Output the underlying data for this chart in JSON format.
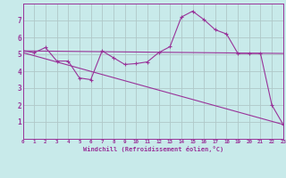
{
  "background_color": "#c8eaea",
  "grid_color": "#b0c8c8",
  "line_color": "#993399",
  "xlim": [
    0,
    23
  ],
  "ylim": [
    0,
    8
  ],
  "xticks": [
    0,
    1,
    2,
    3,
    4,
    5,
    6,
    7,
    8,
    9,
    10,
    11,
    12,
    13,
    14,
    15,
    16,
    17,
    18,
    19,
    20,
    21,
    22,
    23
  ],
  "yticks": [
    1,
    2,
    3,
    4,
    5,
    6,
    7
  ],
  "xlabel": "Windchill (Refroidissement éolien,°C)",
  "series1_x": [
    0,
    1,
    2,
    3,
    4,
    5,
    6,
    7,
    8,
    9,
    10,
    11,
    12,
    13,
    14,
    15,
    16,
    17,
    18,
    19,
    20,
    21,
    22,
    23
  ],
  "series1_y": [
    5.2,
    5.1,
    5.4,
    4.6,
    4.6,
    3.6,
    3.5,
    5.2,
    4.8,
    4.4,
    4.45,
    4.55,
    5.1,
    5.45,
    7.2,
    7.55,
    7.05,
    6.45,
    6.2,
    5.05,
    5.05,
    5.05,
    2.0,
    0.85
  ],
  "series2_x": [
    0,
    23
  ],
  "series2_y": [
    5.2,
    5.05
  ],
  "series3_x": [
    0,
    23
  ],
  "series3_y": [
    5.1,
    0.85
  ]
}
